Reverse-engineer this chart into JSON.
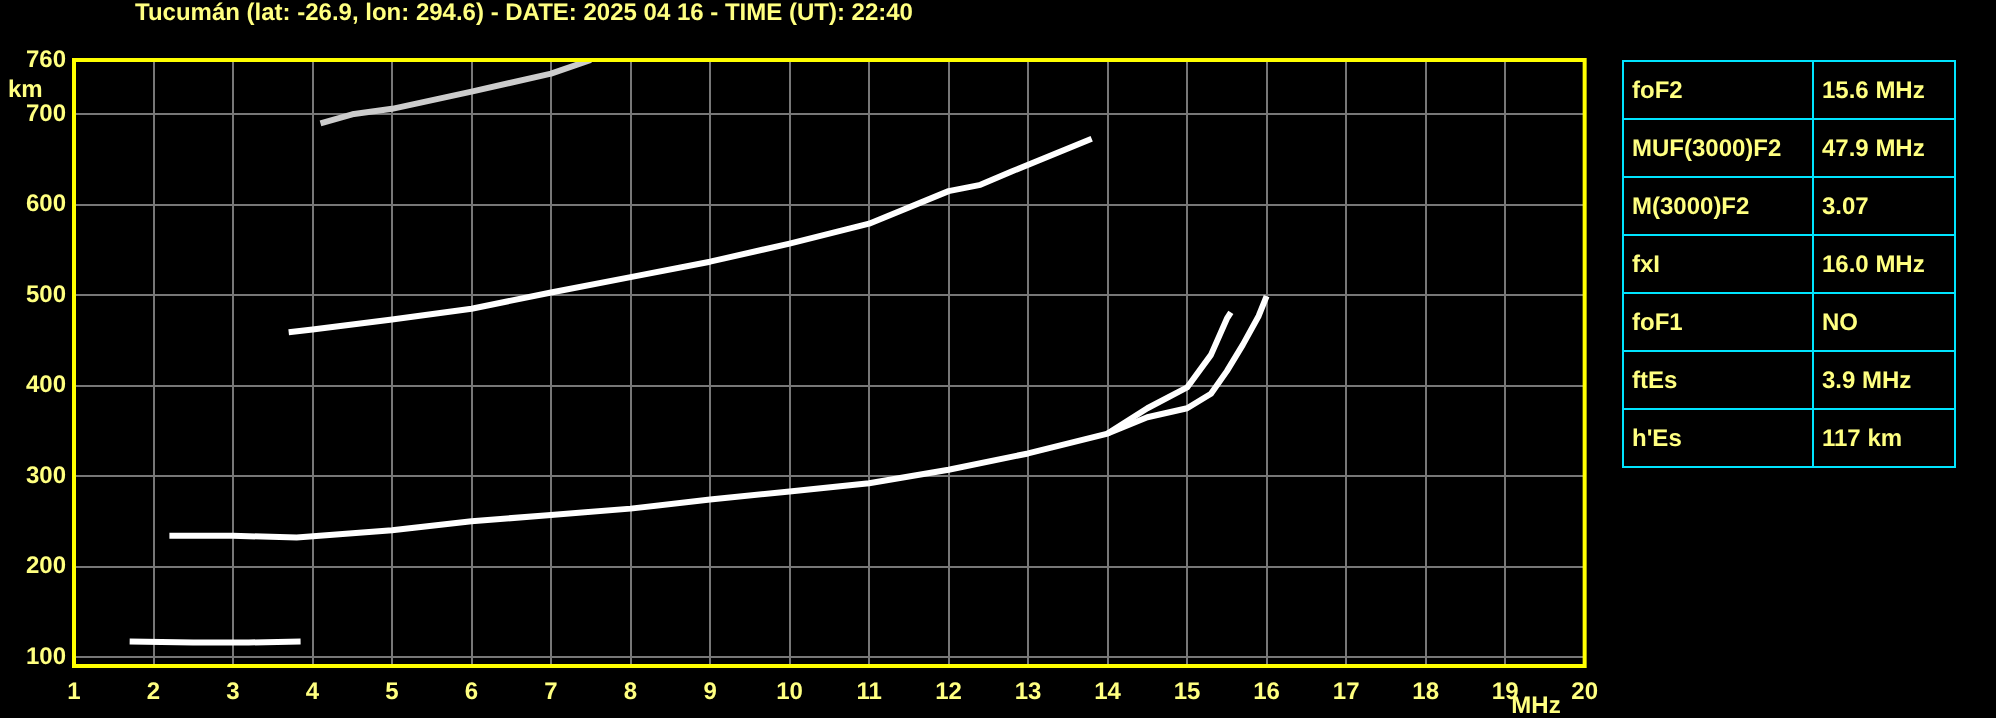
{
  "chart_data": {
    "type": "line",
    "title": "Tucumán (lat: -26.9, lon: 294.6) - DATE: 2025 04 16 - TIME (UT): 22:40",
    "xlabel": "MHz",
    "ylabel": "km",
    "xlim": [
      1,
      20
    ],
    "xticks": [
      1,
      2,
      3,
      4,
      5,
      6,
      7,
      8,
      9,
      10,
      11,
      12,
      13,
      14,
      15,
      16,
      17,
      18,
      19,
      20
    ],
    "ylim": [
      90,
      760
    ],
    "yticks": [
      100,
      200,
      300,
      400,
      500,
      600,
      700,
      760
    ],
    "grid": true,
    "legend": false,
    "marker": "none",
    "line_style": "solid",
    "series": [
      {
        "color": "#ffffff",
        "x": [
          1.7,
          2.5,
          3.2,
          3.85
        ],
        "values": [
          117,
          116,
          116,
          117
        ]
      },
      {
        "color": "#ffffff",
        "x": [
          2.2,
          3,
          3.8,
          5,
          6,
          7,
          8,
          9,
          10,
          11,
          12,
          13,
          14,
          14.5,
          15,
          15.3,
          15.5,
          15.55
        ],
        "values": [
          234,
          234,
          232,
          240,
          250,
          257,
          264,
          274,
          283,
          292,
          307,
          325,
          347,
          375,
          398,
          434,
          474,
          481
        ]
      },
      {
        "color": "#ffffff",
        "x": [
          14,
          14.5,
          15,
          15.3,
          15.5,
          15.7,
          15.9,
          16
        ],
        "values": [
          347,
          365,
          375,
          391,
          416,
          445,
          477,
          499
        ]
      },
      {
        "color": "#ffffff",
        "x": [
          3.7,
          4,
          5,
          6,
          7,
          8,
          9,
          10,
          11,
          12,
          12.4,
          12.8,
          13.8
        ],
        "values": [
          459,
          462,
          473,
          485,
          503,
          520,
          537,
          557,
          579,
          615,
          622,
          637,
          673
        ]
      },
      {
        "color": "#cccccc",
        "x": [
          4.1,
          4.5,
          5,
          6,
          7,
          7.5
        ],
        "values": [
          690,
          700,
          706,
          725,
          745,
          760
        ]
      }
    ],
    "annotations": [
      "foF2",
      "15.6 MHz",
      "MUF(3000)F2",
      "47.9 MHz",
      "M(3000)F2",
      "3.07",
      "fxI",
      "16.0 MHz",
      "foF1",
      "NO",
      "ftEs",
      "3.9 MHz",
      "h'Es",
      "117 km"
    ]
  }
}
